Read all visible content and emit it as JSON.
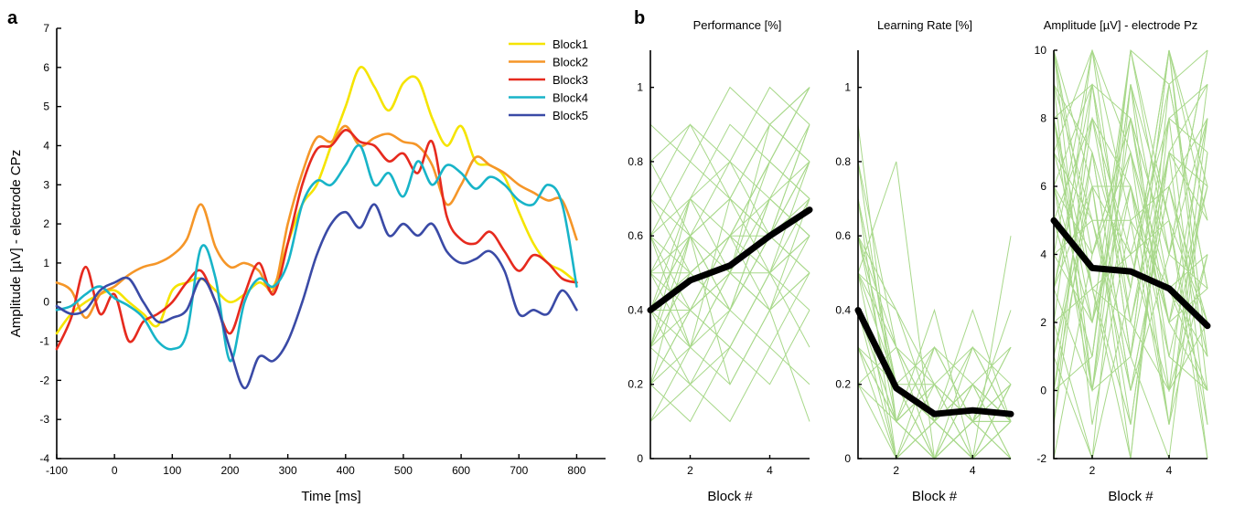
{
  "figure": {
    "panel_a_label": "a",
    "panel_b_label": "b"
  },
  "chart_data": [
    {
      "type": "line",
      "panel": "a",
      "xlabel": "Time [ms]",
      "ylabel": "Amplitude [µV] - electrode CPz",
      "xlim": [
        -100,
        850
      ],
      "ylim": [
        -4,
        7
      ],
      "xticks": [
        -100,
        0,
        100,
        200,
        300,
        400,
        500,
        600,
        700,
        800
      ],
      "yticks": [
        -4,
        -3,
        -2,
        -1,
        0,
        1,
        2,
        3,
        4,
        5,
        6,
        7
      ],
      "legend_position": "top-right",
      "x": [
        -100,
        -75,
        -50,
        -25,
        0,
        25,
        50,
        75,
        100,
        125,
        150,
        175,
        200,
        225,
        250,
        275,
        300,
        325,
        350,
        375,
        400,
        425,
        450,
        475,
        500,
        525,
        550,
        575,
        600,
        625,
        650,
        675,
        700,
        725,
        750,
        775,
        800
      ],
      "series": [
        {
          "name": "Block1",
          "color": "#f5e400",
          "values": [
            -0.8,
            -0.3,
            0.0,
            0.2,
            0.3,
            0.0,
            -0.3,
            -0.6,
            0.3,
            0.5,
            0.6,
            0.3,
            0.0,
            0.2,
            0.5,
            0.4,
            1.5,
            2.5,
            3.0,
            4.0,
            5.0,
            6.0,
            5.5,
            4.9,
            5.6,
            5.7,
            4.7,
            4.0,
            4.5,
            3.6,
            3.5,
            3.2,
            2.3,
            1.5,
            1.0,
            0.8,
            0.5
          ]
        },
        {
          "name": "Block2",
          "color": "#f59628",
          "values": [
            0.5,
            0.3,
            -0.4,
            0.2,
            0.4,
            0.7,
            0.9,
            1.0,
            1.2,
            1.6,
            2.5,
            1.4,
            0.9,
            1.0,
            0.8,
            0.3,
            2.0,
            3.3,
            4.2,
            4.1,
            4.5,
            4.0,
            4.2,
            4.3,
            4.1,
            4.0,
            3.5,
            2.5,
            3.0,
            3.7,
            3.5,
            3.3,
            3.0,
            2.8,
            2.6,
            2.6,
            1.6
          ]
        },
        {
          "name": "Block3",
          "color": "#e62a1e",
          "values": [
            -1.2,
            -0.4,
            0.9,
            -0.3,
            0.2,
            -1.0,
            -0.5,
            -0.3,
            0.0,
            0.5,
            0.8,
            0.0,
            -0.8,
            0.2,
            1.0,
            0.2,
            1.5,
            3.0,
            3.9,
            4.0,
            4.4,
            4.1,
            4.0,
            3.6,
            3.8,
            3.3,
            4.1,
            2.2,
            1.6,
            1.5,
            1.8,
            1.3,
            0.8,
            1.2,
            1.0,
            0.6,
            0.5
          ]
        },
        {
          "name": "Block4",
          "color": "#18b4c8",
          "values": [
            -0.2,
            -0.1,
            0.2,
            0.4,
            0.1,
            -0.1,
            -0.4,
            -1.0,
            -1.2,
            -0.8,
            1.4,
            0.6,
            -1.5,
            0.0,
            0.6,
            0.4,
            1.0,
            2.5,
            3.1,
            3.0,
            3.5,
            4.0,
            3.0,
            3.3,
            2.7,
            3.6,
            3.0,
            3.5,
            3.3,
            2.9,
            3.2,
            3.0,
            2.6,
            2.5,
            3.0,
            2.5,
            0.4
          ]
        },
        {
          "name": "Block5",
          "color": "#3a4aa6",
          "values": [
            -0.1,
            -0.3,
            -0.2,
            0.3,
            0.5,
            0.6,
            0.0,
            -0.5,
            -0.4,
            -0.2,
            0.6,
            0.0,
            -1.2,
            -2.2,
            -1.4,
            -1.5,
            -1.0,
            0.0,
            1.2,
            2.0,
            2.3,
            1.9,
            2.5,
            1.7,
            2.0,
            1.7,
            2.0,
            1.3,
            1.0,
            1.1,
            1.3,
            0.8,
            -0.3,
            -0.2,
            -0.3,
            0.3,
            -0.2
          ]
        }
      ]
    },
    {
      "type": "line",
      "panel": "b",
      "title": "Performance [%]",
      "xlabel": "Block #",
      "ylabel": "",
      "xlim": [
        1,
        5
      ],
      "ylim": [
        0,
        1.1
      ],
      "xticks": [
        2,
        4
      ],
      "yticks": [
        0,
        0.2,
        0.4,
        0.6,
        0.8,
        1.0
      ],
      "ytick_labels": [
        "0",
        "0.2",
        "0.4",
        "0.6",
        "0.8",
        "1"
      ],
      "x": [
        1,
        2,
        3,
        4,
        5
      ],
      "mean": [
        0.4,
        0.48,
        0.52,
        0.6,
        0.67
      ],
      "subjects": [
        [
          0.2,
          0.4,
          0.6,
          0.8,
          1.0
        ],
        [
          0.5,
          0.3,
          0.7,
          0.6,
          0.9
        ],
        [
          0.4,
          0.6,
          0.5,
          0.8,
          0.7
        ],
        [
          0.3,
          0.5,
          0.4,
          0.6,
          0.8
        ],
        [
          0.6,
          0.4,
          0.5,
          0.7,
          0.6
        ],
        [
          0.4,
          0.2,
          0.3,
          0.5,
          0.4
        ],
        [
          0.8,
          0.6,
          0.7,
          0.9,
          1.0
        ],
        [
          0.3,
          0.7,
          0.5,
          0.4,
          0.6
        ],
        [
          0.1,
          0.3,
          0.2,
          0.4,
          0.5
        ],
        [
          0.5,
          0.5,
          0.6,
          0.6,
          0.7
        ],
        [
          0.7,
          0.9,
          0.8,
          1.0,
          0.9
        ],
        [
          0.2,
          0.3,
          0.4,
          0.3,
          0.5
        ],
        [
          0.4,
          0.6,
          0.7,
          0.5,
          0.8
        ],
        [
          0.6,
          0.7,
          0.9,
          0.8,
          1.0
        ],
        [
          0.3,
          0.4,
          0.3,
          0.5,
          0.6
        ],
        [
          0.5,
          0.6,
          0.4,
          0.7,
          0.8
        ],
        [
          0.2,
          0.1,
          0.3,
          0.2,
          0.4
        ],
        [
          0.4,
          0.5,
          0.6,
          0.7,
          0.6
        ],
        [
          0.7,
          0.6,
          0.8,
          0.7,
          0.9
        ],
        [
          0.3,
          0.2,
          0.4,
          0.6,
          0.5
        ],
        [
          0.9,
          0.8,
          1.0,
          0.9,
          1.0
        ],
        [
          0.4,
          0.3,
          0.5,
          0.4,
          0.7
        ],
        [
          0.6,
          0.5,
          0.4,
          0.6,
          0.8
        ],
        [
          0.2,
          0.4,
          0.3,
          0.5,
          0.3
        ],
        [
          0.5,
          0.7,
          0.6,
          0.8,
          0.7
        ],
        [
          0.3,
          0.5,
          0.6,
          0.4,
          0.5
        ],
        [
          0.1,
          0.2,
          0.1,
          0.3,
          0.2
        ],
        [
          0.6,
          0.8,
          0.7,
          0.6,
          0.9
        ],
        [
          0.4,
          0.4,
          0.5,
          0.5,
          0.6
        ],
        [
          0.8,
          0.9,
          0.7,
          0.9,
          0.8
        ],
        [
          0.2,
          0.6,
          0.4,
          0.7,
          0.6
        ],
        [
          0.5,
          0.4,
          0.6,
          0.5,
          0.7
        ],
        [
          0.3,
          0.6,
          0.2,
          0.4,
          0.1
        ],
        [
          0.7,
          0.5,
          0.6,
          0.8,
          1.0
        ],
        [
          0.4,
          0.7,
          0.8,
          0.6,
          0.5
        ],
        [
          0.6,
          0.3,
          0.5,
          0.9,
          0.8
        ]
      ]
    },
    {
      "type": "line",
      "panel": "b",
      "title": "Learning Rate [%]",
      "xlabel": "Block #",
      "ylabel": "",
      "xlim": [
        1,
        5
      ],
      "ylim": [
        0,
        1.1
      ],
      "xticks": [
        2,
        4
      ],
      "yticks": [
        0,
        0.2,
        0.4,
        0.6,
        0.8,
        1.0
      ],
      "ytick_labels": [
        "0",
        "0.2",
        "0.4",
        "0.6",
        "0.8",
        "1"
      ],
      "x": [
        1,
        2,
        3,
        4,
        5
      ],
      "mean": [
        0.4,
        0.19,
        0.12,
        0.13,
        0.12
      ],
      "subjects": [
        [
          0.8,
          0.1,
          0.0,
          0.2,
          0.1
        ],
        [
          0.6,
          0.2,
          0.1,
          0.0,
          0.2
        ],
        [
          0.5,
          0.3,
          0.2,
          0.1,
          0.1
        ],
        [
          0.7,
          0.0,
          0.1,
          0.2,
          0.0
        ],
        [
          0.4,
          0.2,
          0.0,
          0.1,
          0.3
        ],
        [
          0.3,
          0.1,
          0.2,
          0.0,
          0.1
        ],
        [
          0.6,
          0.4,
          0.1,
          0.2,
          0.1
        ],
        [
          0.5,
          0.0,
          0.3,
          0.1,
          0.2
        ],
        [
          0.2,
          0.3,
          0.1,
          0.0,
          0.1
        ],
        [
          0.4,
          0.1,
          0.0,
          0.3,
          0.2
        ],
        [
          0.7,
          0.2,
          0.2,
          0.1,
          0.0
        ],
        [
          0.3,
          0.0,
          0.1,
          0.2,
          0.3
        ],
        [
          0.5,
          0.8,
          0.0,
          0.1,
          0.1
        ],
        [
          0.6,
          0.1,
          0.2,
          0.0,
          0.6
        ],
        [
          0.4,
          0.2,
          0.1,
          0.3,
          0.1
        ],
        [
          0.8,
          0.3,
          0.0,
          0.1,
          0.2
        ],
        [
          0.3,
          0.1,
          0.4,
          0.0,
          0.1
        ],
        [
          0.5,
          0.2,
          0.1,
          0.2,
          0.0
        ],
        [
          0.2,
          0.0,
          0.2,
          0.1,
          0.4
        ],
        [
          0.6,
          0.3,
          0.1,
          0.0,
          0.2
        ],
        [
          0.4,
          0.1,
          0.3,
          0.2,
          0.1
        ],
        [
          0.7,
          0.2,
          0.0,
          0.1,
          0.3
        ],
        [
          0.5,
          0.4,
          0.2,
          0.3,
          0.1
        ],
        [
          0.3,
          0.2,
          0.1,
          0.0,
          0.2
        ],
        [
          0.9,
          0.1,
          0.2,
          0.1,
          0.0
        ],
        [
          0.4,
          0.0,
          0.1,
          0.4,
          0.1
        ],
        [
          0.6,
          0.2,
          0.3,
          0.1,
          0.2
        ],
        [
          0.2,
          0.1,
          0.0,
          0.2,
          0.1
        ]
      ]
    },
    {
      "type": "line",
      "panel": "b",
      "title": "Amplitude [µV] - electrode Pz",
      "xlabel": "Block #",
      "ylabel": "",
      "xlim": [
        1,
        5
      ],
      "ylim": [
        -2,
        10
      ],
      "xticks": [
        2,
        4
      ],
      "yticks": [
        -2,
        0,
        2,
        4,
        6,
        8,
        10
      ],
      "ytick_labels": [
        "-2",
        "0",
        "2",
        "4",
        "6",
        "8",
        "10"
      ],
      "x": [
        1,
        2,
        3,
        4,
        5
      ],
      "mean": [
        5.0,
        3.6,
        3.5,
        3.0,
        1.9
      ],
      "subjects": [
        [
          8,
          2,
          6,
          -1,
          4
        ],
        [
          3,
          9,
          1,
          7,
          -2
        ],
        [
          10,
          4,
          7,
          2,
          6
        ],
        [
          1,
          6,
          -2,
          9,
          3
        ],
        [
          6,
          0,
          8,
          4,
          10
        ],
        [
          -1,
          7,
          3,
          10,
          1
        ],
        [
          9,
          5,
          0,
          6,
          8
        ],
        [
          4,
          10,
          5,
          -1,
          7
        ],
        [
          2,
          -2,
          9,
          3,
          0
        ],
        [
          7,
          3,
          4,
          8,
          -1
        ],
        [
          5,
          8,
          2,
          0,
          9
        ],
        [
          0,
          1,
          10,
          5,
          2
        ],
        [
          10,
          6,
          -1,
          7,
          5
        ],
        [
          3,
          0,
          6,
          2,
          8
        ],
        [
          8,
          9,
          3,
          10,
          0
        ],
        [
          -2,
          4,
          8,
          1,
          6
        ],
        [
          6,
          2,
          10,
          9,
          3
        ],
        [
          1,
          7,
          0,
          4,
          10
        ],
        [
          9,
          -1,
          5,
          6,
          1
        ],
        [
          4,
          5,
          1,
          -2,
          7
        ],
        [
          7,
          10,
          7,
          3,
          4
        ],
        [
          2,
          3,
          -2,
          8,
          9
        ],
        [
          5,
          1,
          9,
          0,
          2
        ],
        [
          0,
          8,
          4,
          5,
          -2
        ],
        [
          10,
          3,
          2,
          7,
          6
        ],
        [
          3,
          6,
          6,
          1,
          0
        ],
        [
          8,
          0,
          10,
          4,
          8
        ],
        [
          -1,
          9,
          1,
          10,
          5
        ],
        [
          6,
          4,
          8,
          2,
          3
        ],
        [
          1,
          -2,
          3,
          9,
          10
        ],
        [
          9,
          7,
          0,
          6,
          2
        ],
        [
          4,
          2,
          7,
          -1,
          8
        ],
        [
          7,
          5,
          5,
          3,
          1
        ],
        [
          2,
          10,
          2,
          8,
          7
        ],
        [
          5,
          1,
          9,
          5,
          -1
        ],
        [
          0,
          6,
          4,
          0,
          4
        ],
        [
          8,
          3,
          -1,
          7,
          9
        ],
        [
          3,
          8,
          6,
          2,
          0
        ],
        [
          10,
          0,
          1,
          10,
          6
        ],
        [
          6,
          9,
          8,
          4,
          3
        ]
      ]
    }
  ]
}
